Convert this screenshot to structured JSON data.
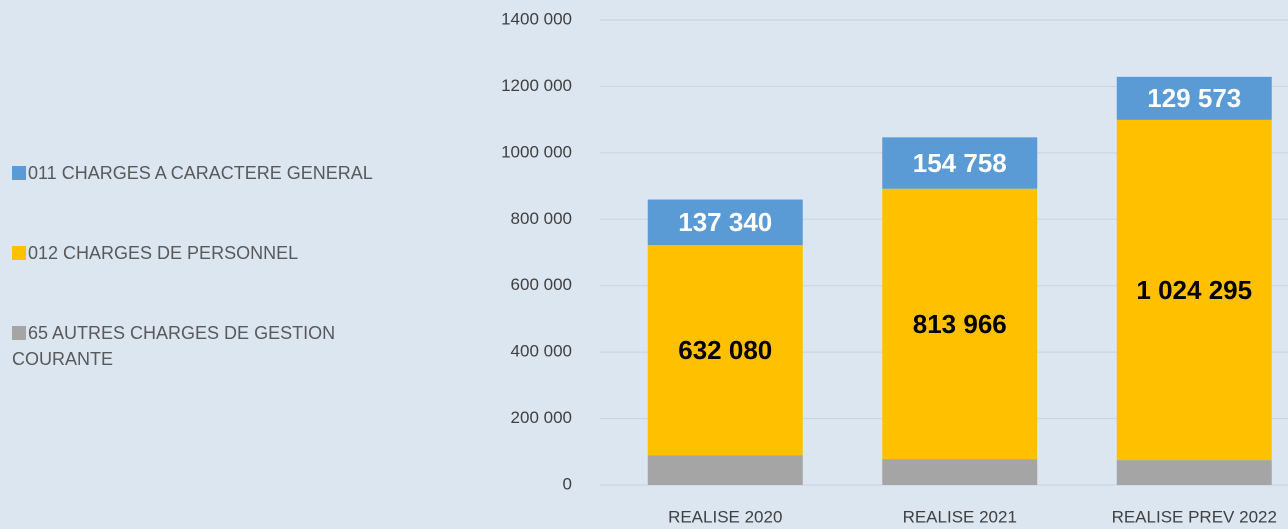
{
  "chart_data": {
    "type": "bar",
    "stacked": true,
    "categories": [
      "REALISE 2020",
      "REALISE 2021",
      "REALISE PREV 2022"
    ],
    "series": [
      {
        "name": "011 CHARGES A CARACTERE GENERAL",
        "color": "#5b9bd5",
        "values": [
          137340,
          154758,
          129573
        ],
        "value_labels": [
          "137 340",
          "154 758",
          "129 573"
        ],
        "label_color": "#ffffff"
      },
      {
        "name": "012 CHARGES DE PERSONNEL",
        "color": "#ffc000",
        "values": [
          632080,
          813966,
          1024295
        ],
        "value_labels": [
          "632 080",
          "813 966",
          "1 024 295"
        ],
        "label_color": "#000000"
      },
      {
        "name": "65 AUTRES CHARGES DE GESTION COURANTE",
        "color": "#a5a5a5",
        "values": [
          90000,
          78000,
          75000
        ]
      }
    ],
    "ylim": [
      0,
      1400000
    ],
    "yticks": [
      0,
      {
        "value": 200000,
        "label": "200 000"
      },
      {
        "value": 400000,
        "label": "400 000"
      },
      {
        "value": 600000,
        "label": "600 000"
      },
      {
        "value": 800000,
        "label": "800 000"
      },
      {
        "value": 1000000,
        "label": "1000 000"
      },
      {
        "value": 1200000,
        "label": "1200 000"
      },
      {
        "value": 1400000,
        "label": "1400 000"
      }
    ],
    "grid": true,
    "legend": "left"
  }
}
